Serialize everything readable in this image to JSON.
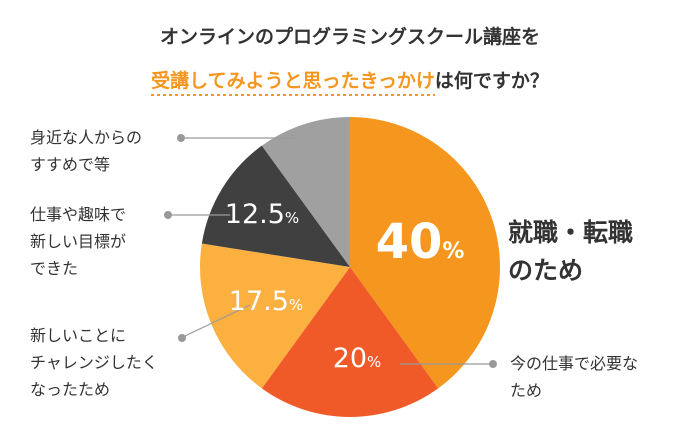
{
  "title": {
    "line1": "オンラインのプログラミングスクール講座を",
    "line2_highlight": "受講してみようと思ったきっかけ",
    "line2_rest": "は何ですか？"
  },
  "colors": {
    "accent": "#f5961e",
    "title_text": "#333333",
    "leader_line": "#999999"
  },
  "chart_data": {
    "type": "pie",
    "title": "オンラインのプログラミングスクール講座を受講してみようと思ったきっかけは何ですか？",
    "unit": "%",
    "start_angle_deg": 0,
    "direction": "clockwise",
    "slices": [
      {
        "label": "就職・転職のため",
        "value": 40,
        "display": "40",
        "color": "#f5961e"
      },
      {
        "label": "今の仕事で必要なため",
        "value": 20,
        "display": "20",
        "color": "#f05a28"
      },
      {
        "label": "新しいことにチャレンジしたくなったため",
        "value": 17.5,
        "display": "17.5",
        "color": "#fbb040"
      },
      {
        "label": "仕事や趣味で新しい目標ができた",
        "value": 12.5,
        "display": "12.5",
        "color": "#404040"
      },
      {
        "label": "身近な人からのすすめで等",
        "value": 10,
        "display": "",
        "color": "#a0a0a0"
      }
    ]
  },
  "labels": {
    "s0": [
      "就職・転職",
      "のため"
    ],
    "s1": [
      "今の仕事で必要な",
      "ため"
    ],
    "s2": [
      "新しいことに",
      "チャレンジしたく",
      "なったため"
    ],
    "s3": [
      "仕事や趣味で",
      "新しい目標が",
      "できた"
    ],
    "s4": [
      "身近な人からの",
      "すすめで等"
    ]
  }
}
